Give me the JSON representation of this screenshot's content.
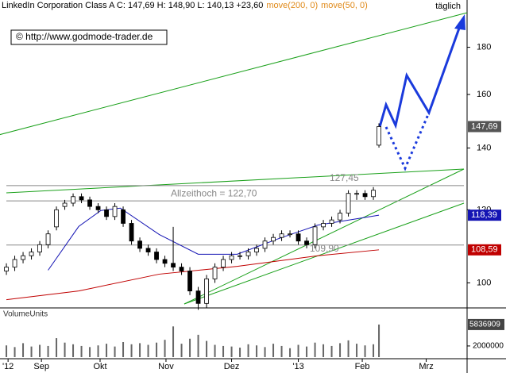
{
  "chart_data": {
    "type": "candlestick",
    "title": "LinkedIn Corporation Class A C: 147,69 H: 148,90 L: 140,13 +23,60",
    "frequency": "täglich",
    "source": "© http://www.godmode-trader.de",
    "log_scale": true,
    "x": [
      0,
      3,
      6,
      9,
      12,
      15,
      18,
      21,
      24,
      27,
      30,
      33,
      36,
      39,
      42,
      45,
      48,
      51,
      54,
      57,
      60,
      63,
      66,
      69,
      72,
      75,
      78,
      81,
      84,
      87,
      90,
      93,
      96,
      99,
      102,
      105,
      108,
      111,
      114,
      117,
      120,
      123,
      126,
      129,
      132,
      134
    ],
    "open": [
      103,
      104,
      106,
      107,
      108,
      110,
      115,
      121,
      122,
      124,
      123,
      121,
      120,
      118,
      120,
      116,
      111,
      109,
      108,
      106,
      105,
      104,
      103,
      98,
      95,
      101,
      104,
      106,
      107,
      107,
      108,
      109,
      111,
      112,
      113,
      113,
      111,
      110,
      115,
      116,
      117,
      119,
      125,
      125,
      124,
      141
    ],
    "high": [
      105,
      107,
      108,
      109,
      111,
      114,
      121,
      123,
      125,
      125,
      124,
      122,
      121,
      122,
      121,
      117,
      112,
      110,
      109,
      107,
      115,
      105,
      104,
      99,
      102,
      105,
      107,
      108,
      108,
      109,
      110,
      112,
      113,
      114,
      114,
      114,
      112,
      116,
      117,
      118,
      120,
      126,
      126,
      126,
      127,
      148.9
    ],
    "low": [
      102,
      103,
      105,
      106,
      107,
      109,
      114,
      120,
      121,
      122,
      120,
      119,
      117,
      117,
      115,
      110,
      108,
      107,
      105,
      104,
      103,
      102,
      97,
      93.5,
      94,
      100,
      103,
      105,
      106,
      106,
      107,
      108,
      110,
      111,
      112,
      110,
      109,
      109,
      114,
      115,
      116,
      118,
      123,
      123,
      123,
      140.13
    ],
    "close": [
      104,
      106,
      107,
      108,
      110,
      113,
      120,
      122,
      124,
      123,
      121,
      120,
      118,
      121,
      116,
      111,
      109,
      108,
      106,
      105,
      104,
      103,
      98,
      95,
      101,
      104,
      106,
      107,
      107,
      108,
      109,
      111,
      112,
      113,
      113,
      111,
      110,
      115,
      116,
      117,
      119,
      125,
      125,
      124,
      126,
      147.69
    ],
    "close_last_label": "147,69",
    "volume": [
      2100000,
      1800000,
      2500000,
      1900000,
      2200000,
      2000000,
      3400000,
      2600000,
      2300000,
      2000000,
      1800000,
      2100000,
      2400000,
      1900000,
      2700000,
      2300000,
      2500000,
      2200000,
      2600000,
      3100000,
      5500000,
      2400000,
      3300000,
      4000000,
      2900000,
      2200000,
      2000000,
      1900000,
      1700000,
      2300000,
      2100000,
      1800000,
      2400000,
      2000000,
      1600000,
      2200000,
      1900000,
      2600000,
      2300000,
      2000000,
      2500000,
      3000000,
      2400000,
      2100000,
      2300000,
      5836909
    ],
    "volume_title": "VolumeUnits",
    "volume_ylim": [
      0,
      8100000
    ],
    "volume_yticks": [
      2000000
    ],
    "series": [
      {
        "name": "move(200, 0)",
        "color": "#c00000",
        "x": [
          0,
          26,
          55,
          83,
          112,
          134
        ],
        "values": [
          95.9,
          98,
          102.2,
          104.2,
          107,
          108.59
        ],
        "last_label": "108,59"
      },
      {
        "name": "move(50, 0)",
        "color": "#1414b4",
        "x": [
          15,
          26,
          34,
          41,
          55,
          69,
          83,
          98,
          112,
          134
        ],
        "values": [
          103.2,
          115.1,
          119.8,
          120.5,
          112.8,
          107.4,
          107.4,
          111.7,
          115.5,
          118.39
        ],
        "last_label": "118,39"
      }
    ],
    "hlines": [
      {
        "value": 122.7,
        "label": "Allzeithoch  =  122,70"
      },
      {
        "value": 127.45,
        "label": "127,45"
      },
      {
        "value": 109.9,
        "label": "109,90"
      }
    ],
    "xlim": [
      -2.3,
      165.7
    ],
    "xticks": [
      {
        "value": 0.6,
        "label": "'12"
      },
      {
        "value": 12.6,
        "label": "Sep"
      },
      {
        "value": 33.7,
        "label": "Okt"
      },
      {
        "value": 57.4,
        "label": "Nov"
      },
      {
        "value": 81,
        "label": "Dez"
      },
      {
        "value": 105,
        "label": "'13"
      },
      {
        "value": 128,
        "label": "Feb"
      },
      {
        "value": 151,
        "label": "Mrz"
      }
    ],
    "ylim": [
      94.5,
      197
    ],
    "yticks": [
      100,
      120,
      140,
      160,
      180
    ]
  }
}
